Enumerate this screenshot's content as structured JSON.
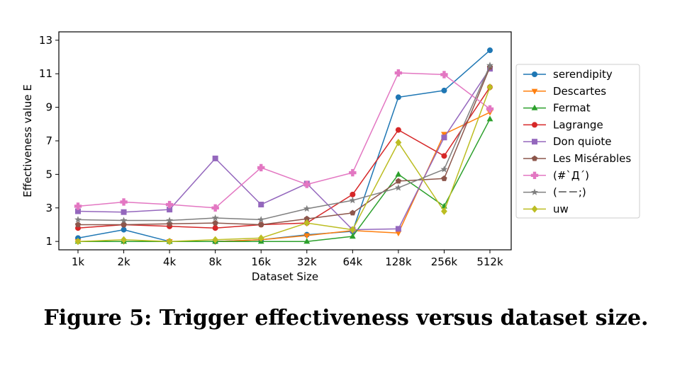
{
  "caption": "Figure 5: Trigger effectiveness versus dataset size.",
  "chart_data": {
    "type": "line",
    "xlabel": "Dataset Size",
    "ylabel": "Effectiveness value E",
    "categories": [
      "1k",
      "2k",
      "4k",
      "8k",
      "16k",
      "32k",
      "64k",
      "128k",
      "256k",
      "512k"
    ],
    "ylim": [
      0.5,
      13.5
    ],
    "yticks": [
      1,
      3,
      5,
      7,
      9,
      11,
      13
    ],
    "grid": false,
    "legend_position": "right",
    "series": [
      {
        "name": "serendipity",
        "color": "#1f77b4",
        "marker": "circle",
        "values": [
          1.2,
          1.7,
          1.0,
          1.0,
          1.1,
          1.4,
          1.6,
          9.6,
          10.0,
          12.4
        ]
      },
      {
        "name": "Descartes",
        "color": "#ff7f0e",
        "marker": "triangle-down",
        "values": [
          1.0,
          1.0,
          1.0,
          1.0,
          1.1,
          1.35,
          1.65,
          1.5,
          7.4,
          8.7
        ]
      },
      {
        "name": "Fermat",
        "color": "#2ca02c",
        "marker": "triangle-up",
        "values": [
          1.0,
          1.0,
          1.0,
          1.0,
          1.0,
          1.0,
          1.3,
          5.0,
          3.1,
          8.3
        ]
      },
      {
        "name": "Lagrange",
        "color": "#d62728",
        "marker": "circle",
        "values": [
          1.8,
          2.0,
          1.9,
          1.8,
          2.0,
          2.1,
          3.8,
          7.65,
          6.1,
          10.2
        ]
      },
      {
        "name": "Don quiote",
        "color": "#9467bd",
        "marker": "square",
        "values": [
          2.8,
          2.75,
          2.9,
          5.95,
          3.2,
          4.45,
          1.7,
          1.75,
          7.2,
          11.3
        ]
      },
      {
        "name": "Les Misérables",
        "color": "#8c564b",
        "marker": "pentagon",
        "values": [
          2.0,
          2.0,
          2.05,
          2.1,
          2.0,
          2.35,
          2.7,
          4.6,
          4.75,
          11.4
        ]
      },
      {
        "name": "(#`Д´)",
        "color": "#e377c2",
        "marker": "plus",
        "values": [
          3.1,
          3.35,
          3.2,
          3.0,
          5.4,
          4.4,
          5.1,
          11.05,
          10.95,
          8.9
        ]
      },
      {
        "name": "(－－;)",
        "color": "#7f7f7f",
        "marker": "star",
        "values": [
          2.3,
          2.25,
          2.25,
          2.4,
          2.3,
          2.95,
          3.45,
          4.2,
          5.3,
          11.5
        ]
      },
      {
        "name": "uw",
        "color": "#bcbd22",
        "marker": "diamond",
        "values": [
          1.0,
          1.1,
          1.0,
          1.1,
          1.2,
          2.1,
          1.7,
          6.9,
          2.8,
          10.2
        ]
      }
    ]
  }
}
